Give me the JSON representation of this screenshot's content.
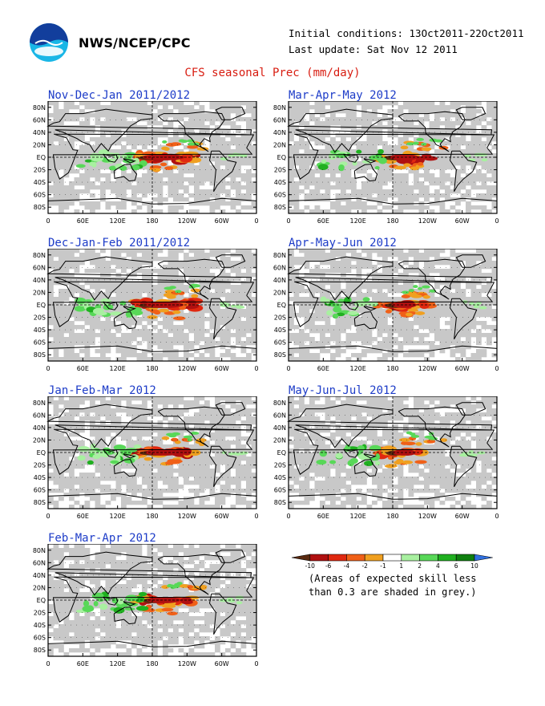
{
  "header": {
    "agency": "NWS/NCEP/CPC",
    "initial_conditions": "Initial conditions: 13Oct2011-22Oct2011",
    "last_update": "Last update: Sat Nov 12 2011",
    "main_title": "CFS seasonal Prec (mm/day)"
  },
  "axes": {
    "lat_labels": [
      "80N",
      "60N",
      "40N",
      "20N",
      "EQ",
      "20S",
      "40S",
      "60S",
      "80S"
    ],
    "lon_labels": [
      "0",
      "60E",
      "120E",
      "180",
      "120W",
      "60W",
      "0"
    ]
  },
  "panels": [
    {
      "title": "Nov-Dec-Jan 2011/2012",
      "intensity": 1.0
    },
    {
      "title": "Mar-Apr-May 2012",
      "intensity": 0.7
    },
    {
      "title": "Dec-Jan-Feb 2011/2012",
      "intensity": 0.95
    },
    {
      "title": "Apr-May-Jun 2012",
      "intensity": 0.6
    },
    {
      "title": "Jan-Feb-Mar 2012",
      "intensity": 0.9
    },
    {
      "title": "May-Jun-Jul 2012",
      "intensity": 0.55
    },
    {
      "title": "Feb-Mar-Apr 2012",
      "intensity": 0.8
    }
  ],
  "colorbar": {
    "labels": [
      "-10",
      "-6",
      "-4",
      "-2",
      "-1",
      "1",
      "2",
      "4",
      "6",
      "10"
    ],
    "colors": [
      "#5a2a10",
      "#b01010",
      "#e02810",
      "#f06018",
      "#f0a020",
      "#ffffff",
      "#a8f0a0",
      "#58d858",
      "#20b020",
      "#108010",
      "#3070e0"
    ]
  },
  "note": {
    "line1": "(Areas of expected skill less",
    "line2": "than 0.3 are shaded in grey.)"
  },
  "colors": {
    "title_red": "#d81c10",
    "panel_title_blue": "#1d3cc8",
    "skill_grey": "#c8c8c8"
  }
}
